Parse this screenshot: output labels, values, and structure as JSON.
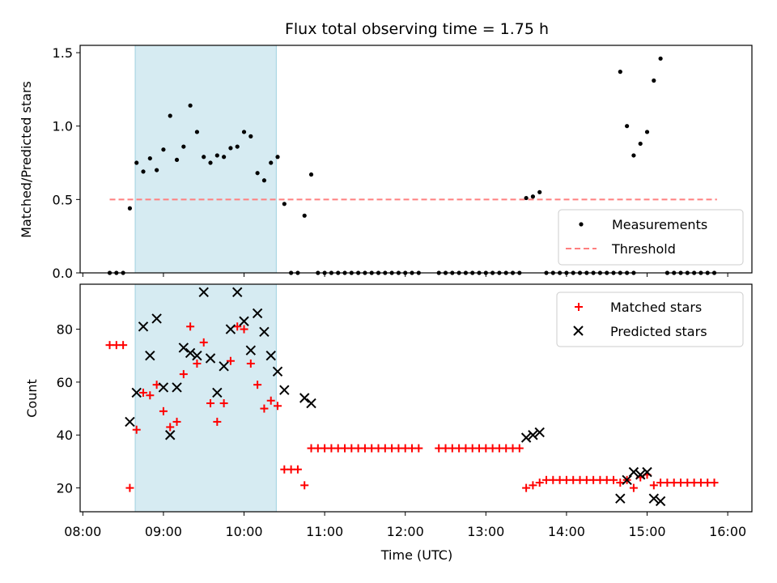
{
  "figure": {
    "title": "Flux total observing time = 1.75 h",
    "xlabel": "Time (UTC)",
    "x_ticks": [
      "08:00",
      "09:00",
      "10:00",
      "11:00",
      "12:00",
      "13:00",
      "14:00",
      "15:00",
      "16:00"
    ]
  },
  "chart_data": [
    {
      "type": "scatter",
      "ylabel": "Matched/Predicted stars",
      "xlim": [
        "07:58",
        "16:18"
      ],
      "ylim": [
        0,
        1.55
      ],
      "y_ticks": [
        "0.0",
        "0.5",
        "1.0",
        "1.5"
      ],
      "shaded_span": [
        "08:39",
        "10:24"
      ],
      "legend": {
        "position": "lower-right",
        "entries": [
          "Measurements",
          "Threshold"
        ]
      },
      "threshold": {
        "name": "Threshold",
        "y": 0.5,
        "x_range": [
          "08:20",
          "15:52"
        ],
        "color": "#ff7f7f"
      },
      "series": [
        {
          "name": "Measurements",
          "color": "#000000",
          "points": [
            [
              "08:20",
              0
            ],
            [
              "08:25",
              0
            ],
            [
              "08:30",
              0
            ],
            [
              "08:35",
              0.44
            ],
            [
              "08:40",
              0.75
            ],
            [
              "08:45",
              0.69
            ],
            [
              "08:50",
              0.78
            ],
            [
              "08:55",
              0.7
            ],
            [
              "09:00",
              0.84
            ],
            [
              "09:05",
              1.07
            ],
            [
              "09:10",
              0.77
            ],
            [
              "09:15",
              0.86
            ],
            [
              "09:20",
              1.14
            ],
            [
              "09:25",
              0.96
            ],
            [
              "09:30",
              0.79
            ],
            [
              "09:35",
              0.75
            ],
            [
              "09:40",
              0.8
            ],
            [
              "09:45",
              0.79
            ],
            [
              "09:50",
              0.85
            ],
            [
              "09:55",
              0.86
            ],
            [
              "10:00",
              0.96
            ],
            [
              "10:05",
              0.93
            ],
            [
              "10:10",
              0.68
            ],
            [
              "10:15",
              0.63
            ],
            [
              "10:20",
              0.75
            ],
            [
              "10:25",
              0.79
            ],
            [
              "10:30",
              0.47
            ],
            [
              "10:35",
              0
            ],
            [
              "10:40",
              0
            ],
            [
              "10:45",
              0.39
            ],
            [
              "10:50",
              0.67
            ],
            [
              "10:55",
              0
            ],
            [
              "11:00",
              0
            ],
            [
              "11:05",
              0
            ],
            [
              "11:10",
              0
            ],
            [
              "11:15",
              0
            ],
            [
              "11:20",
              0
            ],
            [
              "11:25",
              0
            ],
            [
              "11:30",
              0
            ],
            [
              "11:35",
              0
            ],
            [
              "11:40",
              0
            ],
            [
              "11:45",
              0
            ],
            [
              "11:50",
              0
            ],
            [
              "11:55",
              0
            ],
            [
              "12:00",
              0
            ],
            [
              "12:05",
              0
            ],
            [
              "12:10",
              0
            ],
            [
              "12:25",
              0
            ],
            [
              "12:30",
              0
            ],
            [
              "12:35",
              0
            ],
            [
              "12:40",
              0
            ],
            [
              "12:45",
              0
            ],
            [
              "12:50",
              0
            ],
            [
              "12:55",
              0
            ],
            [
              "13:00",
              0
            ],
            [
              "13:05",
              0
            ],
            [
              "13:10",
              0
            ],
            [
              "13:15",
              0
            ],
            [
              "13:20",
              0
            ],
            [
              "13:25",
              0
            ],
            [
              "13:30",
              0.51
            ],
            [
              "13:35",
              0.52
            ],
            [
              "13:40",
              0.55
            ],
            [
              "13:45",
              0
            ],
            [
              "13:50",
              0
            ],
            [
              "13:55",
              0
            ],
            [
              "14:00",
              0
            ],
            [
              "14:05",
              0
            ],
            [
              "14:10",
              0
            ],
            [
              "14:15",
              0
            ],
            [
              "14:20",
              0
            ],
            [
              "14:25",
              0
            ],
            [
              "14:30",
              0
            ],
            [
              "14:35",
              0
            ],
            [
              "14:40",
              0
            ],
            [
              "14:45",
              0
            ],
            [
              "14:50",
              0
            ],
            [
              "14:40",
              1.37
            ],
            [
              "14:45",
              1.0
            ],
            [
              "14:50",
              0.8
            ],
            [
              "14:55",
              0.88
            ],
            [
              "15:00",
              0.96
            ],
            [
              "15:05",
              1.31
            ],
            [
              "15:10",
              1.46
            ],
            [
              "15:15",
              0
            ],
            [
              "15:20",
              0
            ],
            [
              "15:25",
              0
            ],
            [
              "15:30",
              0
            ],
            [
              "15:35",
              0
            ],
            [
              "15:40",
              0
            ],
            [
              "15:45",
              0
            ],
            [
              "15:50",
              0
            ]
          ]
        }
      ]
    },
    {
      "type": "scatter",
      "ylabel": "Count",
      "xlim": [
        "07:58",
        "16:18"
      ],
      "ylim": [
        11,
        97
      ],
      "y_ticks": [
        "20",
        "40",
        "60",
        "80"
      ],
      "shaded_span": [
        "08:39",
        "10:24"
      ],
      "legend": {
        "position": "upper-right",
        "entries": [
          "Matched stars",
          "Predicted stars"
        ]
      },
      "series": [
        {
          "name": "Matched stars",
          "marker": "plus",
          "color": "#ff0000",
          "points": [
            [
              "08:20",
              74
            ],
            [
              "08:25",
              74
            ],
            [
              "08:30",
              74
            ],
            [
              "08:35",
              20
            ],
            [
              "08:40",
              42
            ],
            [
              "08:45",
              56
            ],
            [
              "08:50",
              55
            ],
            [
              "08:55",
              59
            ],
            [
              "09:00",
              49
            ],
            [
              "09:05",
              43
            ],
            [
              "09:10",
              45
            ],
            [
              "09:15",
              63
            ],
            [
              "09:20",
              81
            ],
            [
              "09:25",
              67
            ],
            [
              "09:30",
              75
            ],
            [
              "09:35",
              52
            ],
            [
              "09:40",
              45
            ],
            [
              "09:45",
              52
            ],
            [
              "09:50",
              68
            ],
            [
              "09:55",
              81
            ],
            [
              "10:00",
              80
            ],
            [
              "10:05",
              67
            ],
            [
              "10:10",
              59
            ],
            [
              "10:15",
              50
            ],
            [
              "10:20",
              53
            ],
            [
              "10:25",
              51
            ],
            [
              "10:30",
              27
            ],
            [
              "10:35",
              27
            ],
            [
              "10:40",
              27
            ],
            [
              "10:45",
              21
            ],
            [
              "10:50",
              35
            ],
            [
              "10:55",
              35
            ],
            [
              "11:00",
              35
            ],
            [
              "11:05",
              35
            ],
            [
              "11:10",
              35
            ],
            [
              "11:15",
              35
            ],
            [
              "11:20",
              35
            ],
            [
              "11:25",
              35
            ],
            [
              "11:30",
              35
            ],
            [
              "11:35",
              35
            ],
            [
              "11:40",
              35
            ],
            [
              "11:45",
              35
            ],
            [
              "11:50",
              35
            ],
            [
              "11:55",
              35
            ],
            [
              "12:00",
              35
            ],
            [
              "12:05",
              35
            ],
            [
              "12:10",
              35
            ],
            [
              "12:25",
              35
            ],
            [
              "12:30",
              35
            ],
            [
              "12:35",
              35
            ],
            [
              "12:40",
              35
            ],
            [
              "12:45",
              35
            ],
            [
              "12:50",
              35
            ],
            [
              "12:55",
              35
            ],
            [
              "13:00",
              35
            ],
            [
              "13:05",
              35
            ],
            [
              "13:10",
              35
            ],
            [
              "13:15",
              35
            ],
            [
              "13:20",
              35
            ],
            [
              "13:25",
              35
            ],
            [
              "13:30",
              20
            ],
            [
              "13:35",
              21
            ],
            [
              "13:40",
              22
            ],
            [
              "13:45",
              23
            ],
            [
              "13:50",
              23
            ],
            [
              "13:55",
              23
            ],
            [
              "14:00",
              23
            ],
            [
              "14:05",
              23
            ],
            [
              "14:10",
              23
            ],
            [
              "14:15",
              23
            ],
            [
              "14:20",
              23
            ],
            [
              "14:25",
              23
            ],
            [
              "14:30",
              23
            ],
            [
              "14:35",
              23
            ],
            [
              "14:40",
              22
            ],
            [
              "14:45",
              23
            ],
            [
              "14:50",
              20
            ],
            [
              "14:55",
              24
            ],
            [
              "15:00",
              25
            ],
            [
              "15:05",
              21
            ],
            [
              "15:10",
              22
            ],
            [
              "15:15",
              22
            ],
            [
              "15:20",
              22
            ],
            [
              "15:25",
              22
            ],
            [
              "15:30",
              22
            ],
            [
              "15:35",
              22
            ],
            [
              "15:40",
              22
            ],
            [
              "15:45",
              22
            ],
            [
              "15:50",
              22
            ]
          ]
        },
        {
          "name": "Predicted stars",
          "marker": "x",
          "color": "#000000",
          "points": [
            [
              "08:35",
              45
            ],
            [
              "08:40",
              56
            ],
            [
              "08:45",
              81
            ],
            [
              "08:50",
              70
            ],
            [
              "08:55",
              84
            ],
            [
              "09:00",
              58
            ],
            [
              "09:05",
              40
            ],
            [
              "09:10",
              58
            ],
            [
              "09:15",
              73
            ],
            [
              "09:20",
              71
            ],
            [
              "09:25",
              70
            ],
            [
              "09:30",
              94
            ],
            [
              "09:35",
              69
            ],
            [
              "09:40",
              56
            ],
            [
              "09:45",
              66
            ],
            [
              "09:50",
              80
            ],
            [
              "09:55",
              94
            ],
            [
              "10:00",
              83
            ],
            [
              "10:05",
              72
            ],
            [
              "10:10",
              86
            ],
            [
              "10:15",
              79
            ],
            [
              "10:20",
              70
            ],
            [
              "10:25",
              64
            ],
            [
              "10:30",
              57
            ],
            [
              "10:45",
              54
            ],
            [
              "10:50",
              52
            ],
            [
              "13:30",
              39
            ],
            [
              "13:35",
              40
            ],
            [
              "13:40",
              41
            ],
            [
              "14:40",
              16
            ],
            [
              "14:45",
              23
            ],
            [
              "14:50",
              26
            ],
            [
              "14:55",
              25
            ],
            [
              "15:00",
              26
            ],
            [
              "15:05",
              16
            ],
            [
              "15:10",
              15
            ]
          ]
        }
      ]
    }
  ]
}
